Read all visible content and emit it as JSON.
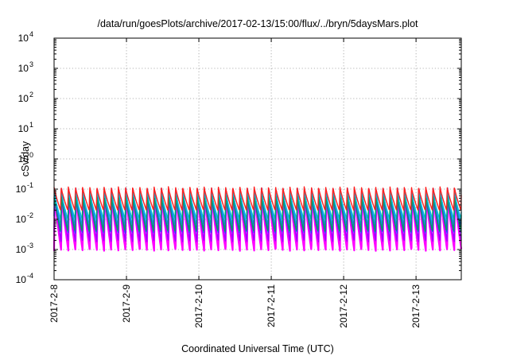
{
  "chart_data": {
    "type": "line",
    "title": "/data/run/goesPlots/archive/2017-02-13/15:00/flux/../bryn/5daysMars.plot",
    "xlabel": "Coordinated Universal Time (UTC)",
    "ylabel": "cSv/day",
    "yscale": "log",
    "ylim": [
      0.0001,
      10000
    ],
    "y_ticks": [
      {
        "value": 0.0001,
        "base": "10",
        "exp": "-4"
      },
      {
        "value": 0.001,
        "base": "10",
        "exp": "-3"
      },
      {
        "value": 0.01,
        "base": "10",
        "exp": "-2"
      },
      {
        "value": 0.1,
        "base": "10",
        "exp": "-1"
      },
      {
        "value": 1,
        "base": "10",
        "exp": "0"
      },
      {
        "value": 10,
        "base": "10",
        "exp": "1"
      },
      {
        "value": 100,
        "base": "10",
        "exp": "2"
      },
      {
        "value": 1000,
        "base": "10",
        "exp": "3"
      },
      {
        "value": 10000,
        "base": "10",
        "exp": "4"
      }
    ],
    "xlim": [
      "2017-02-08T00:00",
      "2017-02-13T15:00"
    ],
    "x_ticks": [
      "2017-2-8",
      "2017-2-9",
      "2017-2-10",
      "2017-2-11",
      "2017-2-12",
      "2017-2-13"
    ],
    "x_tick_dates": [
      "2017-02-08",
      "2017-02-09",
      "2017-02-10",
      "2017-02-11",
      "2017-02-12",
      "2017-02-13"
    ],
    "grid": true,
    "legend": "none",
    "period_hours": 2.37,
    "series": [
      {
        "color": "#ff00ff",
        "peak": 0.07,
        "trough": 0.0009
      },
      {
        "color": "#a000ff",
        "peak": 0.09,
        "trough": 0.0018
      },
      {
        "color": "#2b3dff",
        "peak": 0.11,
        "trough": 0.0035
      },
      {
        "color": "#1a8cff",
        "peak": 0.1,
        "trough": 0.006
      },
      {
        "color": "#00bfd8",
        "peak": 0.08,
        "trough": 0.01
      },
      {
        "color": "#00a060",
        "peak": 0.06,
        "trough": 0.004
      },
      {
        "color": "#ff2020",
        "peak": 0.12,
        "trough": 0.02
      }
    ]
  }
}
